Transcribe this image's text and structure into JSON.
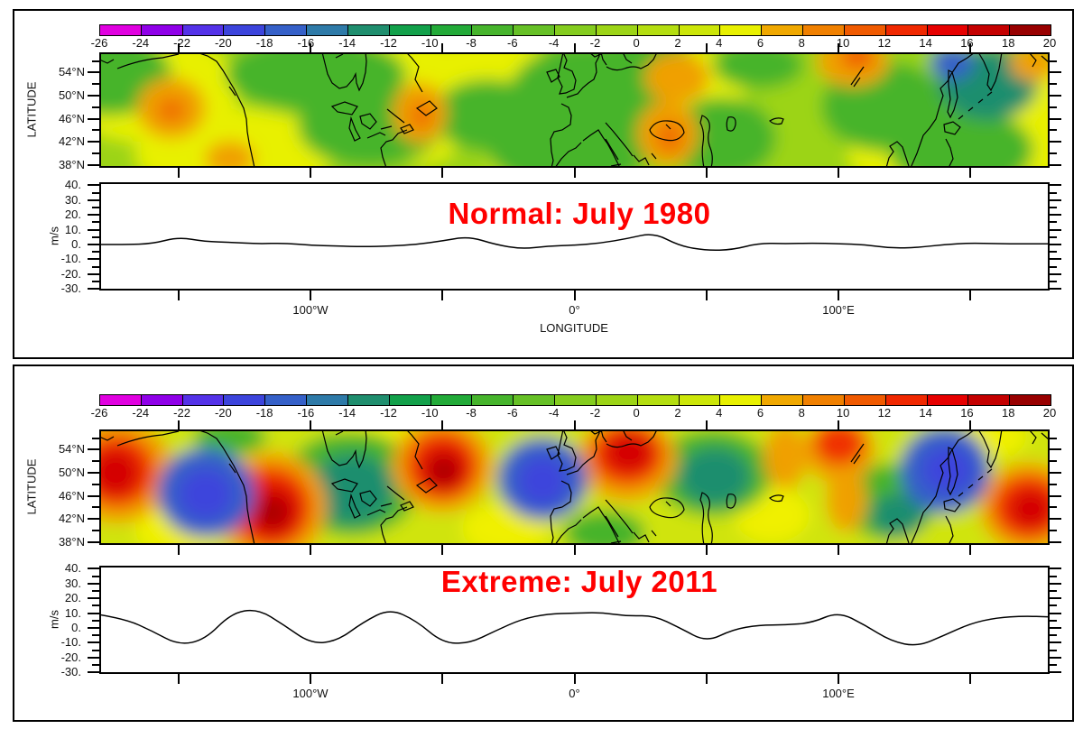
{
  "colorbar": {
    "tick_labels": [
      "-26",
      "-24",
      "-22",
      "-20",
      "-18",
      "-16",
      "-14",
      "-12",
      "-10",
      "-8",
      "-6",
      "-4",
      "-2",
      "0",
      "2",
      "4",
      "6",
      "8",
      "10",
      "12",
      "14",
      "16",
      "18",
      "20"
    ],
    "tick_values": [
      -26,
      -24,
      -22,
      -20,
      -18,
      -16,
      -14,
      -12,
      -10,
      -8,
      -6,
      -4,
      -2,
      0,
      2,
      4,
      6,
      8,
      10,
      12,
      14,
      16,
      18,
      20
    ],
    "colors": [
      "#E000E0",
      "#8F00E8",
      "#5432E8",
      "#3C44DC",
      "#3560C8",
      "#2E7AA8",
      "#1F8E6E",
      "#12A04A",
      "#22AA38",
      "#46B42C",
      "#66C026",
      "#84CC1E",
      "#9CD416",
      "#B4DE10",
      "#CCE608",
      "#E8F000",
      "#F0A800",
      "#F08000",
      "#F05A00",
      "#F02800",
      "#E60000",
      "#C40000",
      "#980000"
    ]
  },
  "axes": {
    "latitude_label": "LATITUDE",
    "longitude_label": "LONGITUDE",
    "ms_label": "m/s",
    "lat_tick_labels": [
      "54°N",
      "50°N",
      "46°N",
      "42°N",
      "38°N"
    ],
    "lat_tick_values": [
      54,
      50,
      46,
      42,
      38
    ],
    "y_tick_labels": [
      "40.",
      "30.",
      "20.",
      "10.",
      "0.",
      "-10.",
      "-20.",
      "-30."
    ],
    "y_tick_values": [
      40,
      30,
      20,
      10,
      0,
      -10,
      -20,
      -30
    ],
    "lon_tick_labels": [
      "100°W",
      "0°",
      "100°E"
    ],
    "lon_tick_values": [
      -100,
      0,
      100
    ]
  },
  "panels": [
    {
      "title": "Normal: July 1980",
      "title_color": "#FF0000",
      "show_longitude_label": true
    },
    {
      "title": "Extreme: July 2011",
      "title_color": "#FF0000",
      "show_longitude_label": false
    }
  ],
  "chart_data": [
    {
      "type": "line",
      "title": "Normal: July 1980",
      "xlabel": "LONGITUDE",
      "ylabel": "m/s",
      "xlim": [
        -180,
        180
      ],
      "ylim": [
        -31,
        42
      ],
      "x_tick_labels": [
        "100°W",
        "0°",
        "100°E"
      ],
      "y_tick_labels": [
        "40.",
        "30.",
        "20.",
        "10.",
        "0.",
        "-10.",
        "-20.",
        "-30."
      ],
      "x": [
        -180,
        -170,
        -160,
        -150,
        -140,
        -130,
        -120,
        -110,
        -100,
        -90,
        -80,
        -70,
        -60,
        -50,
        -40,
        -30,
        -20,
        -10,
        0,
        10,
        20,
        30,
        40,
        50,
        60,
        70,
        80,
        90,
        100,
        110,
        120,
        130,
        140,
        150,
        160,
        170,
        180
      ],
      "y": [
        0,
        0,
        0.5,
        5,
        2,
        1.5,
        0.5,
        1,
        -0.5,
        -1,
        -1.5,
        -1,
        0,
        2.5,
        5.5,
        0,
        -3,
        -1,
        -0.5,
        1,
        4,
        8,
        -1,
        -4,
        -3.5,
        1,
        0.5,
        1,
        0.5,
        0,
        -2.5,
        -2,
        0,
        1,
        0.5,
        0.5,
        0.5
      ]
    },
    {
      "type": "line",
      "title": "Extreme: July 2011",
      "xlabel": "",
      "ylabel": "m/s",
      "xlim": [
        -180,
        180
      ],
      "ylim": [
        -31,
        42
      ],
      "x_tick_labels": [
        "100°W",
        "0°",
        "100°E"
      ],
      "y_tick_labels": [
        "40.",
        "30.",
        "20.",
        "10.",
        "0.",
        "-10.",
        "-20.",
        "-30."
      ],
      "x": [
        -180,
        -170,
        -160,
        -150,
        -140,
        -130,
        -120,
        -110,
        -100,
        -90,
        -80,
        -70,
        -60,
        -50,
        -40,
        -30,
        -20,
        -10,
        0,
        10,
        20,
        30,
        40,
        50,
        60,
        70,
        80,
        90,
        100,
        110,
        120,
        130,
        140,
        150,
        160,
        170,
        180
      ],
      "y": [
        9,
        6,
        -2,
        -11.5,
        -8,
        10,
        13,
        2,
        -10.5,
        -9,
        4,
        13,
        5,
        -10,
        -10.5,
        -2,
        6,
        9.5,
        10,
        10.5,
        8,
        8.5,
        0,
        -9.5,
        -1,
        2,
        2,
        3.5,
        11,
        2,
        -9,
        -12.5,
        -5,
        3,
        7,
        8,
        7.5
      ]
    },
    {
      "type": "heatmap",
      "title": "Normal: July 1980 (map)",
      "ylabel": "LATITUDE",
      "lat_tick_labels": [
        "54°N",
        "50°N",
        "46°N",
        "42°N",
        "38°N"
      ],
      "lon_tick_labels": [
        "100°W",
        "0°",
        "100°E"
      ],
      "levels": [
        -26,
        -24,
        -22,
        -20,
        -18,
        -16,
        -14,
        -12,
        -10,
        -8,
        -6,
        -4,
        -2,
        0,
        2,
        4,
        6,
        8,
        10,
        12,
        14,
        16,
        18,
        20
      ],
      "pattern": "weak anomalies, mostly -4 to +8 (greens/yellows) with small orange maxima near 150W, 60W, 30E, 95E and a small negative (blue) center near 145E"
    },
    {
      "type": "heatmap",
      "title": "Extreme: July 2011 (map)",
      "ylabel": "LATITUDE",
      "lat_tick_labels": [
        "54°N",
        "50°N",
        "46°N",
        "42°N",
        "38°N"
      ],
      "lon_tick_labels": [
        "100°W",
        "0°",
        "100°E"
      ],
      "levels": [
        -26,
        -24,
        -22,
        -20,
        -18,
        -16,
        -14,
        -12,
        -10,
        -8,
        -6,
        -4,
        -2,
        0,
        2,
        4,
        6,
        8,
        10,
        12,
        14,
        16,
        18,
        20
      ],
      "pattern": "strong wave train of alternating positive (red, >14) and negative (blue, <-16) centers near 175W(+), 140W(-), 115W(+), 90W(-), 50W(+), 10W(-), 20E(+), 50E(-), 100E(+), 140E(-), 175E(+)"
    }
  ]
}
